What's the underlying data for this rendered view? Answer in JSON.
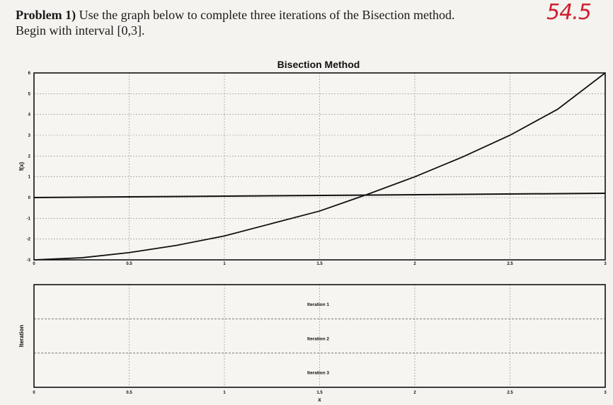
{
  "problem": {
    "label": "Problem 1)",
    "text_line1": "Use the graph below to complete three iterations of the Bisection method.",
    "text_line2": "Begin with interval [0,3]."
  },
  "score": "54.5",
  "chart_data": [
    {
      "type": "line",
      "title": "Bisection Method",
      "xlabel": "",
      "ylabel": "f(x)",
      "xlim": [
        0,
        3
      ],
      "ylim": [
        -3,
        6
      ],
      "xticks": [
        "0",
        "0.5",
        "1",
        "1.5",
        "2",
        "2.5",
        "3"
      ],
      "yticks": [
        "-3",
        "-2",
        "-1",
        "0",
        "1",
        "2",
        "3",
        "4",
        "5",
        "6"
      ],
      "grid": true,
      "series": [
        {
          "x": [
            0,
            0.25,
            0.5,
            0.75,
            1,
            1.25,
            1.5,
            1.75,
            2,
            2.25,
            2.5,
            2.75,
            3
          ],
          "y": [
            -3,
            -2.9,
            -2.65,
            -2.3,
            -1.85,
            -1.25,
            -0.65,
            0.15,
            1.0,
            1.95,
            3.0,
            4.25,
            6.0
          ],
          "color": "#111111"
        }
      ]
    },
    {
      "type": "line",
      "title": "",
      "xlabel": "x",
      "ylabel": "Iteration",
      "xlim": [
        0,
        3
      ],
      "xticks": [
        "0",
        "0.5",
        "1",
        "1.5",
        "2",
        "2.5",
        "3"
      ],
      "rows": [
        "Iteration 1",
        "Iteration 2",
        "Iteration 3"
      ]
    }
  ]
}
